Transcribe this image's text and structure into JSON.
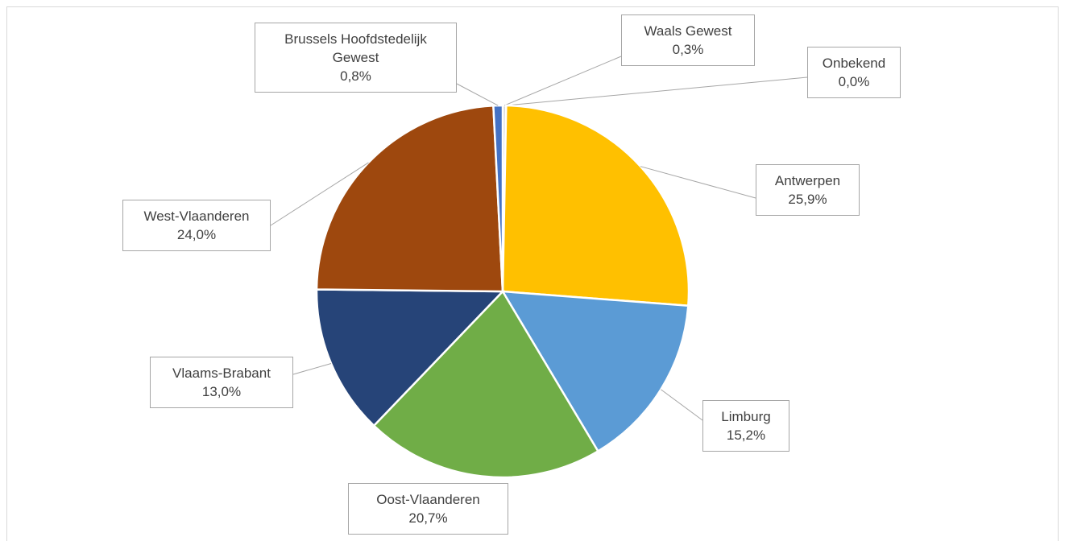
{
  "chart_data": {
    "type": "pie",
    "categories": [
      "Waals Gewest",
      "Onbekend",
      "Antwerpen",
      "Limburg",
      "Oost-Vlaanderen",
      "Vlaams-Brabant",
      "West-Vlaanderen",
      "Brussels Hoofdstedelijk Gewest"
    ],
    "values": [
      0.3,
      0.0,
      25.9,
      15.2,
      20.7,
      13.0,
      24.0,
      0.8
    ],
    "value_labels": [
      "0,3%",
      "0,0%",
      "25,9%",
      "15,2%",
      "20,7%",
      "13,0%",
      "24,0%",
      "0,8%"
    ],
    "colors": [
      "#D9D9D9",
      "#A5A5A5",
      "#FFC000",
      "#5B9BD5",
      "#70AD47",
      "#264478",
      "#9E480E",
      "#4472C4"
    ]
  }
}
